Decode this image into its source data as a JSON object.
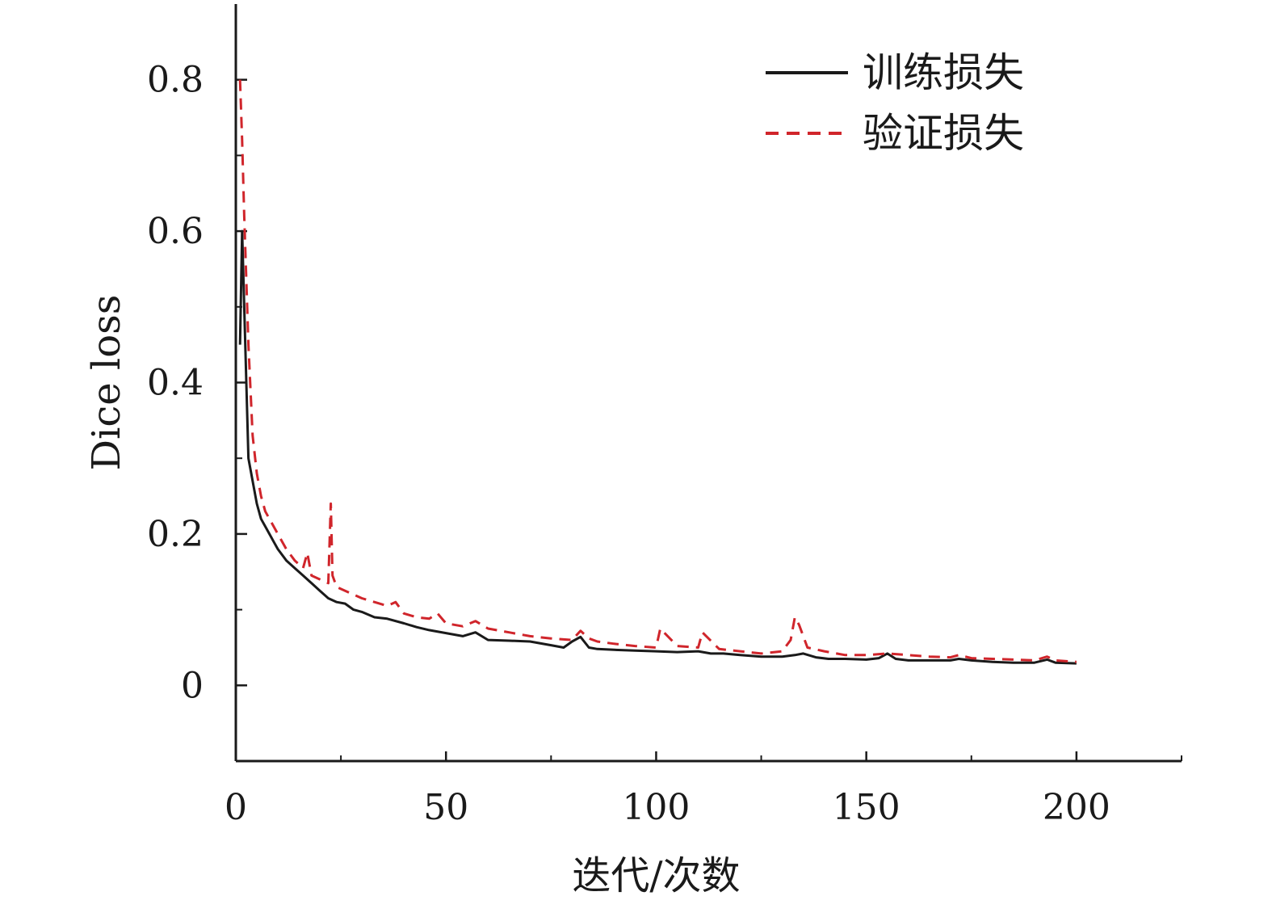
{
  "chart_data": {
    "type": "line",
    "xlabel": "迭代/次数",
    "ylabel": "Dice loss",
    "xlim": [
      0,
      225
    ],
    "ylim": [
      -0.1,
      0.9
    ],
    "x_ticks": [
      0,
      50,
      100,
      150,
      200
    ],
    "x_tick_labels": [
      "0",
      "50",
      "100",
      "150",
      "200"
    ],
    "x_minor_ticks": [
      25,
      75,
      125,
      175,
      225
    ],
    "y_ticks": [
      0,
      0.2,
      0.4,
      0.6,
      0.8
    ],
    "y_tick_labels": [
      "0",
      "0.2",
      "0.4",
      "0.6",
      "0.8"
    ],
    "y_minor_ticks": [
      0.1,
      0.3,
      0.5,
      0.7
    ],
    "grid": false,
    "legend_position": "top-right",
    "series": [
      {
        "name": "训练损失",
        "color": "#1a1a1a",
        "dash": "solid",
        "x": [
          1,
          1.5,
          2,
          3,
          4,
          5,
          6,
          7,
          8,
          9,
          10,
          12,
          14,
          16,
          18,
          20,
          22,
          24,
          26,
          28,
          30,
          33,
          36,
          40,
          43,
          46,
          50,
          54,
          57,
          60,
          65,
          70,
          75,
          78,
          80,
          82,
          84,
          86,
          90,
          95,
          100,
          105,
          110,
          113,
          116,
          120,
          125,
          130,
          133,
          135,
          138,
          141,
          145,
          150,
          153,
          155,
          157,
          160,
          165,
          170,
          172,
          175,
          180,
          185,
          190,
          193,
          195,
          200
        ],
        "y": [
          0.45,
          0.6,
          0.5,
          0.3,
          0.27,
          0.24,
          0.22,
          0.21,
          0.2,
          0.19,
          0.18,
          0.165,
          0.155,
          0.145,
          0.135,
          0.125,
          0.115,
          0.11,
          0.108,
          0.1,
          0.097,
          0.09,
          0.088,
          0.082,
          0.077,
          0.073,
          0.069,
          0.065,
          0.07,
          0.06,
          0.059,
          0.058,
          0.053,
          0.05,
          0.058,
          0.064,
          0.05,
          0.048,
          0.047,
          0.046,
          0.045,
          0.044,
          0.045,
          0.042,
          0.042,
          0.04,
          0.038,
          0.038,
          0.04,
          0.042,
          0.037,
          0.035,
          0.035,
          0.034,
          0.036,
          0.042,
          0.035,
          0.033,
          0.033,
          0.033,
          0.035,
          0.033,
          0.031,
          0.03,
          0.03,
          0.034,
          0.03,
          0.029
        ]
      },
      {
        "name": "验证损失",
        "color": "#d0252b",
        "dash": "dashed",
        "x": [
          1,
          1.5,
          2,
          3,
          4,
          5,
          6,
          7,
          8,
          9,
          10,
          12,
          14,
          16,
          17,
          18,
          20,
          22,
          22.6,
          23,
          24,
          26,
          28,
          30,
          33,
          36,
          38,
          40,
          43,
          46,
          48,
          50,
          54,
          57,
          60,
          65,
          70,
          75,
          80,
          82,
          84,
          86,
          90,
          95,
          100,
          101,
          105,
          110,
          111,
          115,
          120,
          125,
          130,
          132,
          133,
          134,
          136,
          140,
          145,
          150,
          155,
          160,
          165,
          170,
          172,
          175,
          180,
          185,
          190,
          193,
          195,
          200
        ],
        "y": [
          0.8,
          0.72,
          0.62,
          0.45,
          0.33,
          0.28,
          0.25,
          0.23,
          0.22,
          0.21,
          0.2,
          0.18,
          0.165,
          0.155,
          0.175,
          0.145,
          0.14,
          0.135,
          0.24,
          0.145,
          0.13,
          0.125,
          0.12,
          0.115,
          0.11,
          0.105,
          0.11,
          0.095,
          0.09,
          0.088,
          0.095,
          0.082,
          0.078,
          0.085,
          0.075,
          0.07,
          0.065,
          0.062,
          0.06,
          0.072,
          0.062,
          0.058,
          0.055,
          0.052,
          0.05,
          0.075,
          0.052,
          0.05,
          0.07,
          0.048,
          0.045,
          0.042,
          0.045,
          0.06,
          0.09,
          0.08,
          0.05,
          0.045,
          0.04,
          0.04,
          0.042,
          0.04,
          0.038,
          0.037,
          0.04,
          0.036,
          0.035,
          0.034,
          0.033,
          0.038,
          0.033,
          0.031
        ]
      }
    ]
  }
}
